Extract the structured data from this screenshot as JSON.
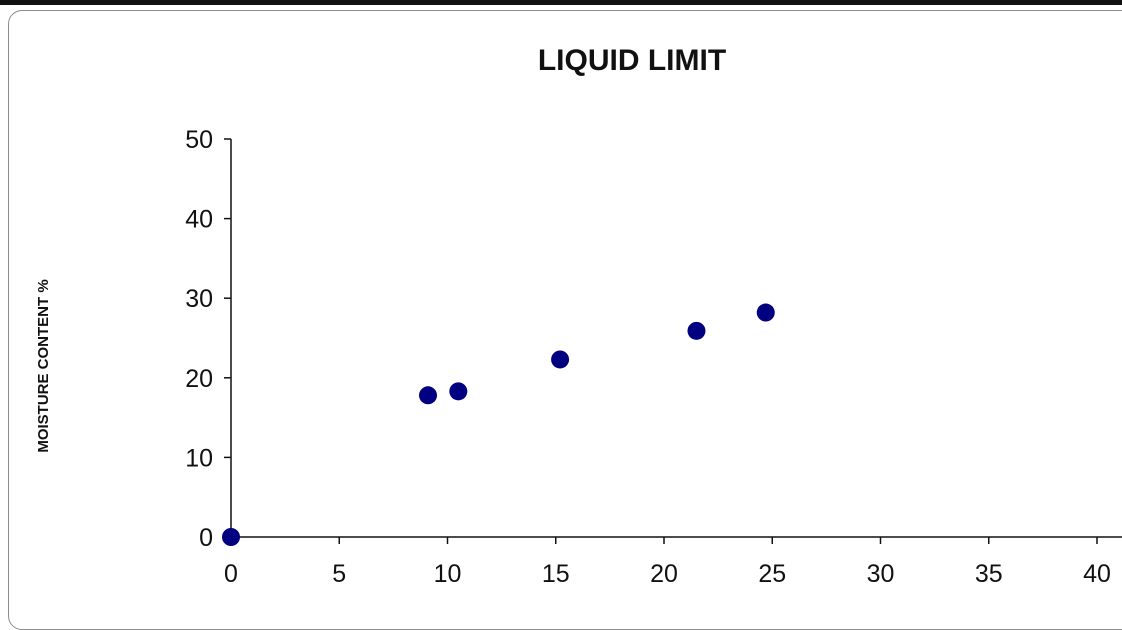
{
  "chart_data": {
    "type": "scatter",
    "title": "LIQUID LIMIT",
    "xlabel": "",
    "ylabel": "MOISTURE CONTENT %",
    "xlim": [
      0,
      40
    ],
    "ylim": [
      0,
      50
    ],
    "x_ticks": [
      0,
      5,
      10,
      15,
      20,
      25,
      30,
      35,
      40
    ],
    "y_ticks": [
      0,
      10,
      20,
      30,
      40,
      50
    ],
    "grid": false,
    "legend": "none",
    "marker_color": "#000080",
    "series": [
      {
        "x": [
          0,
          9.1,
          10.5,
          15.2,
          21.5,
          24.7
        ],
        "y": [
          0,
          17.8,
          18.3,
          22.3,
          25.9,
          28.2
        ]
      }
    ]
  }
}
